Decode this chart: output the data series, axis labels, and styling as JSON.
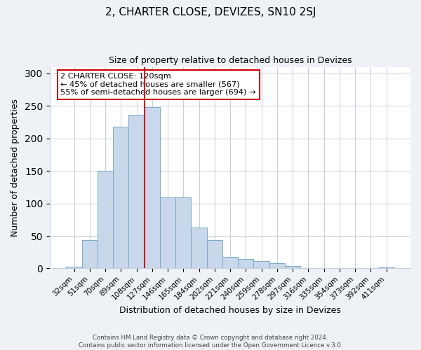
{
  "title": "2, CHARTER CLOSE, DEVIZES, SN10 2SJ",
  "subtitle": "Size of property relative to detached houses in Devizes",
  "xlabel": "Distribution of detached houses by size in Devizes",
  "ylabel": "Number of detached properties",
  "bar_color": "#c8d8ea",
  "bar_edge_color": "#7aaac8",
  "categories": [
    "32sqm",
    "51sqm",
    "70sqm",
    "89sqm",
    "108sqm",
    "127sqm",
    "146sqm",
    "165sqm",
    "184sqm",
    "202sqm",
    "221sqm",
    "240sqm",
    "259sqm",
    "278sqm",
    "297sqm",
    "316sqm",
    "335sqm",
    "354sqm",
    "373sqm",
    "392sqm",
    "411sqm"
  ],
  "values": [
    3,
    44,
    150,
    218,
    236,
    248,
    109,
    109,
    63,
    44,
    18,
    15,
    11,
    8,
    4,
    1,
    1,
    1,
    0,
    0,
    2
  ],
  "vline_x": 4.5,
  "vline_color": "#cc0000",
  "annotation_title": "2 CHARTER CLOSE: 120sqm",
  "annotation_line1": "← 45% of detached houses are smaller (567)",
  "annotation_line2": "55% of semi-detached houses are larger (694) →",
  "annotation_box_color": "#cc0000",
  "ylim": [
    0,
    310
  ],
  "yticks": [
    0,
    50,
    100,
    150,
    200,
    250,
    300
  ],
  "footer1": "Contains HM Land Registry data © Crown copyright and database right 2024.",
  "footer2": "Contains public sector information licensed under the Open Government Licence v.3.0.",
  "background_color": "#eef2f7",
  "plot_bg_color": "#ffffff",
  "grid_color": "#c5cede"
}
